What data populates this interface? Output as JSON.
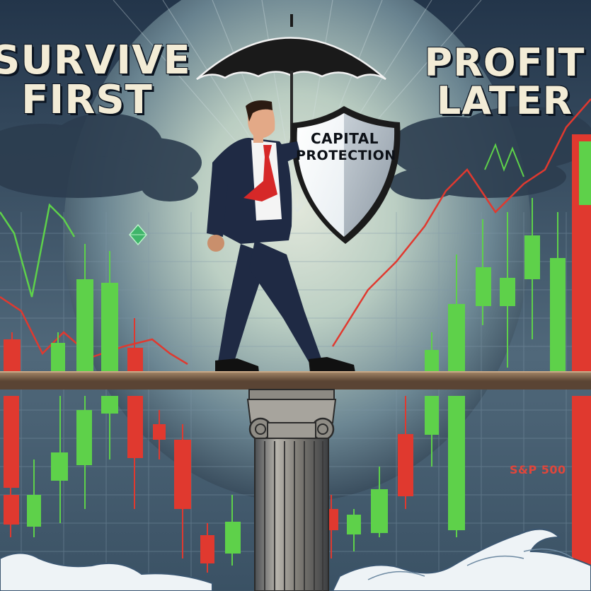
{
  "poster": {
    "left_heading": [
      "SURVIVE",
      "FIRST"
    ],
    "right_heading": [
      "PROFIT",
      "LATER"
    ],
    "shield_text": [
      "CAPITAL",
      "PROTECTION"
    ],
    "corner_mark": "S&P 500"
  },
  "colors": {
    "sky_dark": "#1b2838",
    "glow": "#f1f6e4",
    "candle_green": "#5ed14a",
    "candle_red": "#e0392f",
    "beam": "#8a6d52",
    "suit": "#1f2a44",
    "tie": "#d62828",
    "umbrella": "#1a1a1a",
    "wave": "#ffffff"
  },
  "icons": [
    "umbrella-icon",
    "shield-icon",
    "ionic-column-icon",
    "diamond-icon"
  ]
}
